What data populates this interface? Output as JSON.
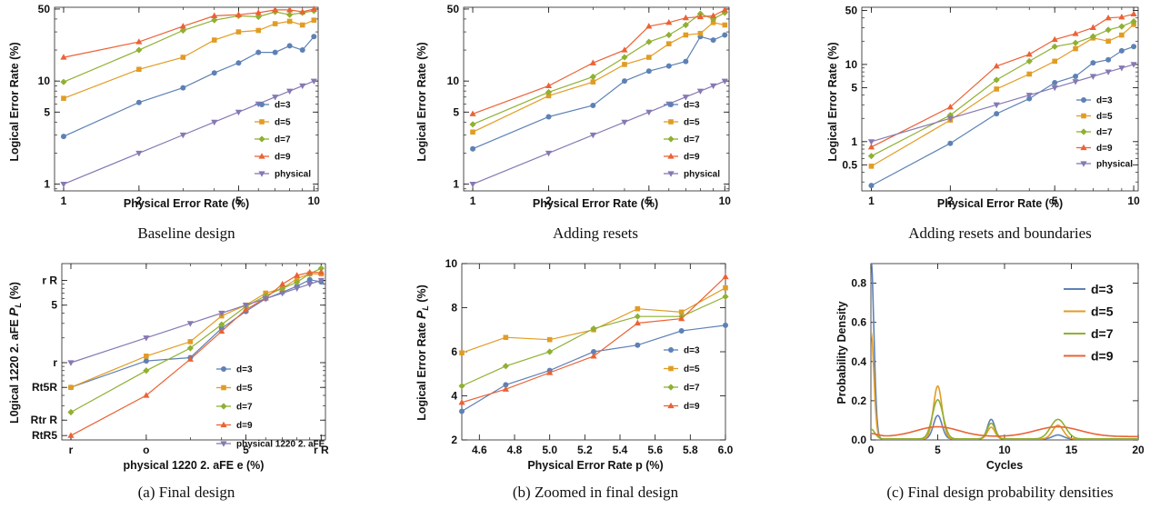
{
  "colors": {
    "d=3": "#5e81b5",
    "d=5": "#e19c24",
    "d=7": "#8fb032",
    "d=9": "#eb6235",
    "physical": "#8778b3"
  },
  "chart_data": [
    {
      "type": "line",
      "caption": "Baseline design",
      "xlabel": "Physical Error Rate (%)",
      "ylabel": "Logical Error Rate (%)",
      "xscale": "log",
      "yscale": "log",
      "xlim": [
        0.92,
        10.4
      ],
      "ylim": [
        0.86,
        52
      ],
      "xticks": [
        1,
        2,
        5,
        10
      ],
      "yticks": [
        1,
        5,
        10,
        50
      ],
      "legend": "lower-right",
      "series": [
        {
          "name": "d=3",
          "marker": "circle",
          "x": [
            1,
            2,
            3,
            4,
            5,
            6,
            7,
            8,
            9,
            10
          ],
          "y": [
            2.9,
            6.2,
            8.6,
            12,
            15,
            19,
            19,
            22,
            20,
            27
          ]
        },
        {
          "name": "d=5",
          "marker": "square",
          "x": [
            1,
            2,
            3,
            4,
            5,
            6,
            7,
            8,
            9,
            10
          ],
          "y": [
            6.8,
            13,
            17,
            25,
            30,
            31,
            36,
            38,
            35,
            39
          ]
        },
        {
          "name": "d=7",
          "marker": "diamond",
          "x": [
            1,
            2,
            3,
            4,
            5,
            6,
            7,
            8,
            9,
            10
          ],
          "y": [
            9.8,
            20,
            31,
            39,
            43,
            42,
            47,
            44,
            46,
            48
          ]
        },
        {
          "name": "d=9",
          "marker": "triangle",
          "x": [
            1,
            2,
            3,
            4,
            5,
            6,
            7,
            8,
            9,
            10
          ],
          "y": [
            17,
            24,
            34,
            43,
            44,
            46,
            49,
            49,
            47,
            50
          ]
        },
        {
          "name": "physical",
          "marker": "tri-down",
          "x": [
            1,
            2,
            3,
            4,
            5,
            6,
            7,
            8,
            9,
            10
          ],
          "y": [
            1,
            2,
            3,
            4,
            5,
            6,
            7,
            8,
            9,
            10
          ]
        }
      ]
    },
    {
      "type": "line",
      "caption": "Adding resets",
      "xlabel": "Physical Error Rate (%)",
      "ylabel": "Logical Error Rate (%)",
      "xscale": "log",
      "yscale": "log",
      "xlim": [
        0.92,
        10.4
      ],
      "ylim": [
        0.86,
        52
      ],
      "xticks": [
        1,
        2,
        5,
        10
      ],
      "yticks": [
        1,
        5,
        10,
        50
      ],
      "legend": "lower-right",
      "series": [
        {
          "name": "d=3",
          "marker": "circle",
          "x": [
            1,
            2,
            3,
            4,
            5,
            6,
            7,
            8,
            9,
            10
          ],
          "y": [
            2.2,
            4.5,
            5.8,
            10,
            12.5,
            14,
            15.5,
            27,
            25,
            28
          ]
        },
        {
          "name": "d=5",
          "marker": "square",
          "x": [
            1,
            2,
            3,
            4,
            5,
            6,
            7,
            8,
            9,
            10
          ],
          "y": [
            3.2,
            7.2,
            9.8,
            14.5,
            17,
            23,
            28,
            29,
            37,
            35
          ]
        },
        {
          "name": "d=7",
          "marker": "diamond",
          "x": [
            1,
            2,
            3,
            4,
            5,
            6,
            7,
            8,
            9,
            10
          ],
          "y": [
            3.8,
            7.8,
            11,
            17,
            24,
            28,
            35,
            45,
            40,
            46
          ]
        },
        {
          "name": "d=9",
          "marker": "triangle",
          "x": [
            1,
            2,
            3,
            4,
            5,
            6,
            7,
            8,
            9,
            10
          ],
          "y": [
            4.8,
            9,
            15,
            20,
            34,
            37,
            41,
            42,
            43,
            49
          ]
        },
        {
          "name": "physical",
          "marker": "tri-down",
          "x": [
            1,
            2,
            3,
            4,
            5,
            6,
            7,
            8,
            9,
            10
          ],
          "y": [
            1,
            2,
            3,
            4,
            5,
            6,
            7,
            8,
            9,
            10
          ]
        }
      ]
    },
    {
      "type": "line",
      "caption": "Adding resets and boundaries",
      "xlabel": "Physical Error Rate (%)",
      "ylabel": "Logical Error Rate (%)",
      "xscale": "log",
      "yscale": "log",
      "xlim": [
        0.92,
        10.4
      ],
      "ylim": [
        0.23,
        55
      ],
      "xticks": [
        1,
        2,
        5,
        10
      ],
      "yticks": [
        0.5,
        1,
        5,
        10,
        50
      ],
      "legend": "lower-right",
      "series": [
        {
          "name": "d=3",
          "marker": "circle",
          "x": [
            1,
            2,
            3,
            4,
            5,
            6,
            7,
            8,
            9,
            10
          ],
          "y": [
            0.27,
            0.95,
            2.3,
            3.6,
            5.8,
            7,
            10.5,
            11.5,
            15,
            17
          ]
        },
        {
          "name": "d=5",
          "marker": "square",
          "x": [
            1,
            2,
            3,
            4,
            5,
            6,
            7,
            8,
            9,
            10
          ],
          "y": [
            0.48,
            1.9,
            4.8,
            7.5,
            11,
            16,
            22,
            20,
            24,
            33
          ]
        },
        {
          "name": "d=7",
          "marker": "diamond",
          "x": [
            1,
            2,
            3,
            4,
            5,
            6,
            7,
            8,
            9,
            10
          ],
          "y": [
            0.65,
            2.2,
            6.3,
            11,
            17,
            19,
            23,
            28,
            31,
            36
          ]
        },
        {
          "name": "d=9",
          "marker": "triangle",
          "x": [
            1,
            2,
            3,
            4,
            5,
            6,
            7,
            8,
            9,
            10
          ],
          "y": [
            0.85,
            2.8,
            9.5,
            13.5,
            21,
            25,
            30,
            40,
            41,
            45
          ]
        },
        {
          "name": "physical",
          "marker": "tri-down",
          "x": [
            1,
            2,
            3,
            4,
            5,
            6,
            7,
            8,
            9,
            10
          ],
          "y": [
            1,
            2,
            3,
            4,
            5,
            6,
            7,
            8,
            9,
            10
          ]
        }
      ]
    },
    {
      "type": "line",
      "caption": "(a) Final design",
      "xlabel": "physical 1220 2. aFE e (%)",
      "ylabel_main": "L0gical 1220 2. aFE",
      "ylabel_sym": "P",
      "ylabel_sub": "L",
      "ylabel_tail": "(%)",
      "xscale": "log",
      "yscale": "log",
      "xlim": [
        0.92,
        10.4
      ],
      "ylim": [
        0.115,
        16
      ],
      "xticks": [
        1,
        2,
        5,
        10
      ],
      "xticklabels": [
        "r",
        "o",
        "5",
        "r R"
      ],
      "yticks": [
        0.13,
        0.2,
        0.5,
        1,
        5,
        10
      ],
      "yticklabels": [
        "RtR5",
        "Rtr R",
        "Rt5R",
        "r",
        "5",
        "r R"
      ],
      "legend": "lower-right",
      "series": [
        {
          "name": "d=3",
          "marker": "circle",
          "x": [
            1,
            2,
            3,
            4,
            5,
            6,
            7,
            8,
            9,
            10
          ],
          "y": [
            0.5,
            1.05,
            1.15,
            2.6,
            4.2,
            6,
            7.2,
            8.5,
            10.2,
            9.6
          ]
        },
        {
          "name": "d=5",
          "marker": "square",
          "x": [
            1,
            2,
            3,
            4,
            5,
            6,
            7,
            8,
            9,
            10
          ],
          "y": [
            0.5,
            1.2,
            1.8,
            3.7,
            5,
            7,
            8,
            10.5,
            12,
            12
          ]
        },
        {
          "name": "d=7",
          "marker": "diamond",
          "x": [
            1,
            2,
            3,
            4,
            5,
            6,
            7,
            8,
            9,
            10
          ],
          "y": [
            0.25,
            0.8,
            1.5,
            2.9,
            4.8,
            6.5,
            8,
            9.5,
            12,
            14
          ]
        },
        {
          "name": "d=9",
          "marker": "triangle",
          "x": [
            1,
            2,
            3,
            4,
            5,
            6,
            7,
            8,
            9,
            10
          ],
          "y": [
            0.13,
            0.4,
            1.1,
            2.4,
            4.4,
            6.1,
            9,
            11.5,
            12.5,
            12.5
          ]
        },
        {
          "name": "physical 1220 2. aFE",
          "marker": "tri-down",
          "x": [
            1,
            2,
            3,
            4,
            5,
            6,
            7,
            8,
            9,
            10
          ],
          "y": [
            1,
            2,
            3,
            4,
            5,
            6,
            7,
            8,
            9,
            10
          ]
        }
      ]
    },
    {
      "type": "line",
      "caption": "(b) Zoomed in final design",
      "xlabel": "Physical Error Rate p (%)",
      "ylabel_main": "Logical Error Rate",
      "ylabel_sym": "P",
      "ylabel_sub": "L",
      "ylabel_tail": "(%)",
      "xscale": "linear",
      "yscale": "linear",
      "xlim": [
        4.5,
        6.0
      ],
      "ylim": [
        2,
        10
      ],
      "xticks": [
        4.6,
        4.8,
        5.0,
        5.2,
        5.4,
        5.6,
        5.8,
        6.0
      ],
      "xticklabels": [
        "4.6",
        "4.8",
        "5.0",
        "5.2",
        "5.4",
        "5.6",
        "5.8",
        "6.0"
      ],
      "yticks": [
        2,
        4,
        6,
        8,
        10
      ],
      "yticklabels": [
        "2",
        "4",
        "6",
        "8",
        "10"
      ],
      "legend": "right",
      "series": [
        {
          "name": "d=3",
          "marker": "circle",
          "x": [
            4.5,
            4.75,
            5.0,
            5.25,
            5.5,
            5.75,
            6.0
          ],
          "y": [
            3.3,
            4.5,
            5.15,
            6.0,
            6.3,
            6.95,
            7.2
          ]
        },
        {
          "name": "d=5",
          "marker": "square",
          "x": [
            4.5,
            4.75,
            5.0,
            5.25,
            5.5,
            5.75,
            6.0
          ],
          "y": [
            5.95,
            6.65,
            6.55,
            7.0,
            7.95,
            7.8,
            8.9
          ]
        },
        {
          "name": "d=7",
          "marker": "diamond",
          "x": [
            4.5,
            4.75,
            5.0,
            5.25,
            5.5,
            5.75,
            6.0
          ],
          "y": [
            4.45,
            5.35,
            6.0,
            7.05,
            7.6,
            7.6,
            8.5
          ]
        },
        {
          "name": "d=9",
          "marker": "triangle",
          "x": [
            4.5,
            4.75,
            5.0,
            5.25,
            5.5,
            5.75,
            6.0
          ],
          "y": [
            3.7,
            4.3,
            5.05,
            5.8,
            7.3,
            7.5,
            9.4
          ]
        }
      ]
    },
    {
      "type": "line",
      "caption": "(c) Final design probability densities",
      "xlabel": "Cycles",
      "ylabel": "Probability Density",
      "xscale": "linear",
      "yscale": "linear",
      "xlim": [
        0,
        20
      ],
      "ylim": [
        0,
        0.9
      ],
      "xticks": [
        0,
        5,
        10,
        15,
        20
      ],
      "xticklabels": [
        "0",
        "5",
        "10",
        "15",
        "20"
      ],
      "yticks": [
        0,
        0.2,
        0.4,
        0.6,
        0.8
      ],
      "yticklabels": [
        "0.0",
        "0.2",
        "0.4",
        "0.6",
        "0.8"
      ],
      "legend": "top-right",
      "series": [
        {
          "name": "d=3",
          "peaks": [
            [
              0,
              0.93,
              0.22
            ],
            [
              5,
              0.12,
              0.32
            ],
            [
              9,
              0.1,
              0.28
            ],
            [
              14,
              0.02,
              0.4
            ]
          ]
        },
        {
          "name": "d=5",
          "peaks": [
            [
              0,
              0.55,
              0.22
            ],
            [
              5,
              0.27,
              0.32
            ],
            [
              9,
              0.06,
              0.28
            ],
            [
              14,
              0.07,
              0.4
            ]
          ]
        },
        {
          "name": "d=7",
          "peaks": [
            [
              0,
              0.05,
              0.3
            ],
            [
              5,
              0.2,
              0.4
            ],
            [
              9,
              0.08,
              0.3
            ],
            [
              14,
              0.1,
              0.55
            ]
          ]
        },
        {
          "name": "d=9",
          "peaks": [
            [
              0,
              0.015,
              0.5
            ],
            [
              5,
              0.05,
              1.6
            ],
            [
              14,
              0.05,
              1.7
            ]
          ]
        }
      ]
    }
  ]
}
